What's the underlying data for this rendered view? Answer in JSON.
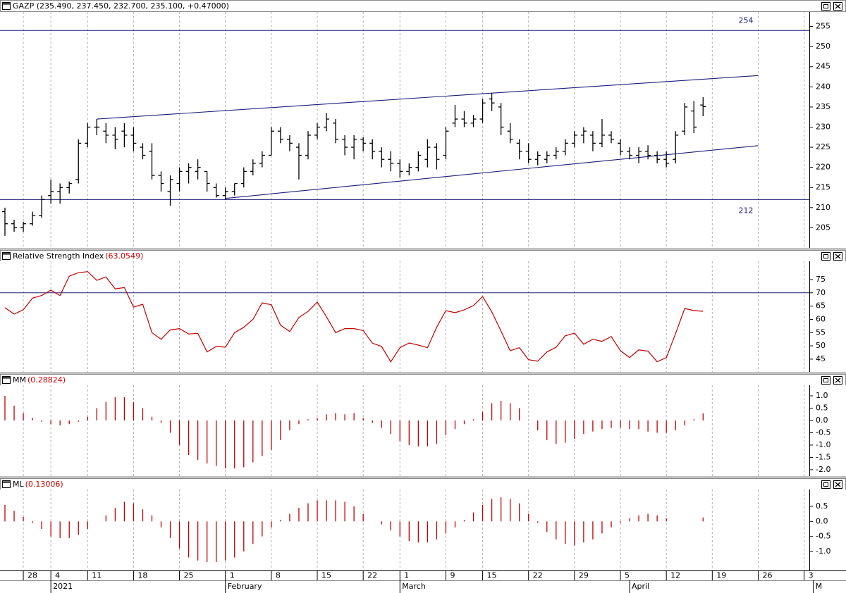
{
  "chart_data": [
    {
      "type": "ohlc",
      "title": "GAZP (235.490, 237.450, 232.700, 235.100, +0.47000)",
      "color": "#000000",
      "categories": [
        null,
        null,
        "28",
        null,
        null,
        "4",
        null,
        null,
        null,
        "11",
        null,
        null,
        null,
        null,
        "18",
        null,
        null,
        null,
        null,
        "25",
        null,
        null,
        null,
        null,
        "1",
        null,
        null,
        null,
        null,
        "8",
        null,
        null,
        null,
        null,
        "15",
        null,
        null,
        null,
        null,
        "22",
        null,
        null,
        null,
        "1",
        null,
        null,
        null,
        null,
        "9",
        null,
        null,
        null,
        "15",
        null,
        null,
        null,
        null,
        "22",
        null,
        null,
        null,
        null,
        "29",
        null,
        null,
        null,
        null,
        "5",
        null,
        null,
        null,
        null,
        "12",
        null,
        null,
        null,
        null,
        "19",
        null,
        null,
        null,
        null,
        "26",
        null,
        null,
        null,
        null,
        "3"
      ],
      "month_labels": [
        null,
        null,
        null,
        null,
        null,
        "2021",
        null,
        null,
        null,
        null,
        null,
        null,
        null,
        null,
        null,
        null,
        null,
        null,
        null,
        null,
        null,
        null,
        null,
        null,
        "February",
        null,
        null,
        null,
        null,
        null,
        null,
        null,
        null,
        null,
        null,
        null,
        null,
        null,
        null,
        null,
        null,
        null,
        null,
        "March",
        null,
        null,
        null,
        null,
        null,
        null,
        null,
        null,
        null,
        null,
        null,
        null,
        null,
        null,
        null,
        null,
        null,
        null,
        null,
        null,
        null,
        null,
        null,
        null,
        "April",
        null,
        null,
        null,
        null,
        null,
        null,
        null,
        null,
        null,
        null,
        null,
        null,
        null,
        null,
        null,
        null,
        null,
        null,
        null,
        "M"
      ],
      "open": [
        209,
        206,
        205,
        206,
        208,
        213,
        214,
        215,
        217,
        226,
        230,
        229,
        228,
        229,
        228,
        225,
        224,
        218,
        214,
        216,
        219,
        219,
        219,
        215,
        213,
        214,
        216,
        219,
        221,
        223,
        229,
        227,
        225,
        223,
        228,
        230,
        231,
        227,
        225,
        227,
        226,
        224,
        222,
        221,
        219,
        220,
        222,
        225,
        223,
        231,
        232,
        231,
        232,
        237,
        235,
        229,
        226,
        224,
        222,
        222,
        223,
        224,
        226,
        228,
        228,
        226,
        228,
        226,
        224,
        223,
        224,
        223,
        222,
        222,
        229,
        234,
        235.49,
        null,
        null,
        null,
        null,
        null,
        null,
        null,
        null,
        null,
        null,
        null
      ],
      "high": [
        210,
        207,
        206.5,
        209,
        213,
        217,
        216,
        216.5,
        227,
        231,
        232,
        231,
        230,
        231,
        230,
        226,
        226,
        219,
        218,
        220,
        221,
        222,
        219,
        216,
        215,
        216,
        220,
        222,
        224,
        230,
        230,
        228,
        226,
        229,
        231,
        233.5,
        232,
        228,
        228,
        227.5,
        227,
        225,
        224,
        222,
        221,
        224,
        227,
        226,
        230,
        235.5,
        234,
        233,
        237,
        238.5,
        236,
        231,
        227,
        226,
        224,
        224,
        225,
        227,
        229,
        230,
        229,
        232,
        229,
        227,
        225,
        225,
        225.5,
        224,
        224,
        229,
        236,
        236.5,
        237.45,
        null,
        null,
        null,
        null,
        null,
        null,
        null,
        null,
        null,
        null,
        null
      ],
      "low": [
        203,
        204,
        204,
        205.5,
        207.5,
        211,
        211,
        213.5,
        216,
        225,
        228,
        226,
        224.5,
        225,
        224,
        222,
        217,
        214,
        210.5,
        214,
        216,
        217,
        214,
        212.5,
        212,
        213,
        215,
        218,
        220,
        223,
        226,
        224,
        217,
        222,
        227,
        229,
        226,
        223,
        222,
        224,
        222,
        220,
        219,
        217.5,
        218,
        219,
        220,
        219.5,
        222,
        230,
        230,
        230,
        231,
        234,
        228,
        226,
        222,
        221,
        220.5,
        221,
        222,
        223,
        225,
        226,
        224,
        225,
        226,
        223,
        222,
        221,
        222,
        221,
        220,
        221,
        228,
        228.5,
        232.7,
        null,
        null,
        null,
        null,
        null,
        null,
        null,
        null,
        null,
        null,
        null
      ],
      "close": [
        206,
        205,
        206,
        208,
        212,
        214,
        215,
        216,
        226,
        230,
        230,
        228,
        227,
        228,
        226,
        223,
        218,
        216,
        217,
        219,
        220,
        220,
        216,
        213,
        214,
        216,
        219,
        221,
        223,
        229,
        227,
        226,
        223,
        228,
        230,
        232,
        227,
        225,
        227,
        226,
        224,
        222,
        221,
        219,
        220,
        223,
        225,
        222,
        229,
        232,
        231,
        232,
        236,
        236,
        230,
        227,
        224,
        222,
        223,
        223,
        224,
        226,
        228,
        229,
        226,
        228,
        227,
        224,
        223,
        224,
        223,
        222,
        221,
        228,
        235,
        230,
        235.1,
        null,
        null,
        null,
        null,
        null,
        null,
        null,
        null,
        null,
        null,
        null
      ],
      "ylim": [
        200,
        258.6
      ],
      "yticks": [
        205,
        210,
        215,
        220,
        225,
        230,
        235,
        240,
        245,
        250,
        255
      ],
      "hlines": [
        254,
        212
      ],
      "hline_labels": true,
      "hline_color": "#1c1c78",
      "trendlines": [
        {
          "x": [
            10,
            82
          ],
          "y": [
            232,
            242.8
          ]
        },
        {
          "x": [
            24,
            82
          ],
          "y": [
            212.3,
            225.4
          ]
        }
      ]
    },
    {
      "type": "line",
      "title": "Relative Strength Index",
      "value_label": "(63.0549)",
      "color": "#c00000",
      "values": [
        64.4,
        62,
        63.6,
        68,
        69,
        71,
        69,
        76.3,
        77.6,
        78,
        74.7,
        76,
        71.5,
        72,
        64.6,
        65.7,
        55,
        52.5,
        56,
        56.5,
        54.5,
        54.7,
        47.7,
        49.8,
        49.5,
        55,
        57,
        60,
        66.2,
        65.5,
        57.8,
        55.4,
        60.7,
        63,
        66.5,
        61,
        55,
        56.5,
        56.5,
        55.8,
        51,
        49.8,
        44,
        49.3,
        51.1,
        50.3,
        49.3,
        57,
        63.3,
        62.5,
        63.6,
        65.2,
        68.6,
        62.8,
        55.6,
        48.2,
        49.3,
        44.8,
        44.2,
        47.7,
        49.5,
        53.8,
        54.8,
        50.6,
        52.5,
        51.7,
        53.5,
        48.2,
        45.6,
        48.5,
        48,
        44,
        45.6,
        54.6,
        64.1,
        63.3,
        63.0549,
        null,
        null,
        null,
        null,
        null,
        null,
        null,
        null,
        null,
        null,
        null
      ],
      "ylim": [
        40.2,
        81.9
      ],
      "yticks": [
        45,
        50,
        55,
        60,
        65,
        70,
        75
      ],
      "hlines": [
        70
      ],
      "hline_color": "#1c1c78"
    },
    {
      "type": "bar",
      "title": "MM",
      "value_label": "(0.28824)",
      "color": "#c00000",
      "values": [
        1.0,
        0.6,
        0.3,
        0.1,
        -0.05,
        -0.15,
        -0.2,
        -0.15,
        -0.05,
        0.15,
        0.5,
        0.75,
        0.95,
        0.95,
        0.75,
        0.5,
        0.15,
        -0.1,
        -0.5,
        -1.0,
        -1.4,
        -1.6,
        -1.75,
        -1.85,
        -1.95,
        -1.95,
        -1.9,
        -1.7,
        -1.45,
        -1.2,
        -0.8,
        -0.4,
        -0.15,
        0.05,
        0.1,
        0.25,
        0.3,
        0.25,
        0.3,
        0.1,
        -0.1,
        -0.3,
        -0.55,
        -0.85,
        -1.0,
        -1.05,
        -1.05,
        -0.95,
        -0.6,
        -0.35,
        -0.15,
        0.05,
        0.35,
        0.7,
        0.8,
        0.7,
        0.5,
        0.0,
        -0.4,
        -0.8,
        -0.95,
        -0.9,
        -0.75,
        -0.55,
        -0.45,
        -0.35,
        -0.3,
        -0.3,
        -0.35,
        -0.35,
        -0.45,
        -0.5,
        -0.5,
        -0.4,
        -0.2,
        0.05,
        0.28824,
        null,
        null,
        null,
        null,
        null,
        null,
        null,
        null,
        null,
        null,
        null
      ],
      "ylim": [
        -2.26,
        1.43
      ],
      "yticks": [
        {
          "value": 1,
          "label": "1.0"
        },
        0.5,
        {
          "value": 0,
          "label": "0.0"
        },
        -0.5,
        {
          "value": -1,
          "label": "-1.0"
        },
        -1.5,
        {
          "value": -2,
          "label": "-2.0"
        }
      ]
    },
    {
      "type": "bar",
      "title": "ML",
      "value_label": "(0.13006)",
      "color": "#c00000",
      "values": [
        0.55,
        0.35,
        0.15,
        -0.05,
        -0.25,
        -0.5,
        -0.55,
        -0.55,
        -0.45,
        -0.25,
        0.0,
        0.2,
        0.45,
        0.65,
        0.6,
        0.4,
        0.2,
        -0.2,
        -0.55,
        -0.9,
        -1.2,
        -1.3,
        -1.35,
        -1.35,
        -1.3,
        -1.2,
        -1.0,
        -0.75,
        -0.5,
        -0.2,
        0.05,
        0.25,
        0.45,
        0.6,
        0.7,
        0.7,
        0.7,
        0.65,
        0.5,
        0.25,
        0.0,
        -0.1,
        -0.3,
        -0.5,
        -0.65,
        -0.7,
        -0.7,
        -0.6,
        -0.4,
        -0.2,
        0.05,
        0.3,
        0.55,
        0.75,
        0.8,
        0.75,
        0.6,
        0.25,
        -0.05,
        -0.35,
        -0.6,
        -0.75,
        -0.8,
        -0.7,
        -0.6,
        -0.4,
        -0.2,
        -0.05,
        0.1,
        0.2,
        0.25,
        0.2,
        0.1,
        0.0,
        0.0,
        0.0,
        0.13006,
        null,
        null,
        null,
        null,
        null,
        null,
        null,
        null,
        null,
        null,
        null
      ],
      "ylim": [
        -1.63,
        1.06
      ],
      "yticks": [
        0.5,
        {
          "value": 0,
          "label": "0.0"
        },
        -0.5,
        {
          "value": -1,
          "label": "-1.0"
        }
      ]
    }
  ]
}
